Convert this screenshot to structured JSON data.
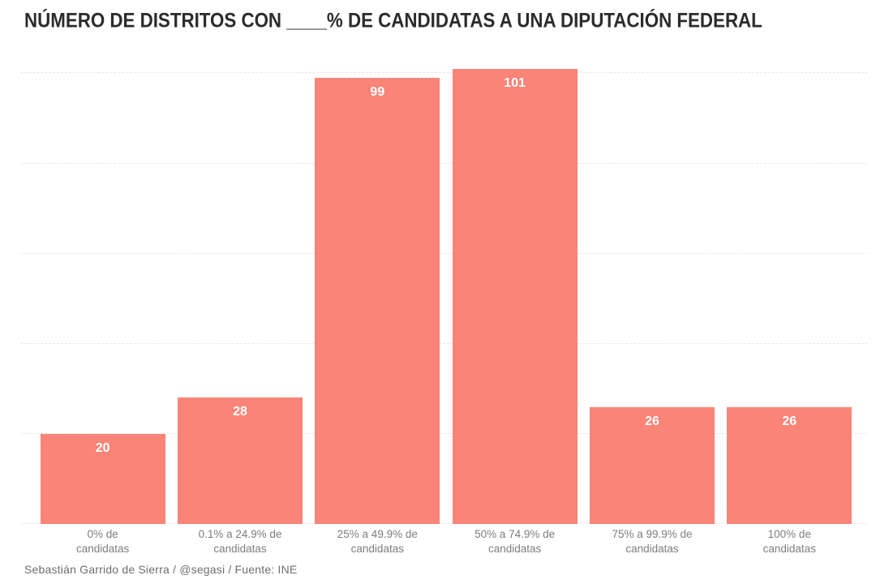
{
  "title": "NÚMERO DE DISTRITOS CON ____% DE CANDIDATAS A UNA DIPUTACIÓN FEDERAL",
  "footer": "Sebastián Garrido de Sierra / @segasi / Fuente: INE",
  "colors": {
    "bar": "#F98477",
    "title": "#2B2B2B",
    "category_label": "#7D7D7D",
    "value_label": "#FFFFFF",
    "gridline": "#E6E6E6",
    "footer": "#6E6E6E",
    "background": "#FFFFFF"
  },
  "chart_data": {
    "type": "bar",
    "title": "NÚMERO DE DISTRITOS CON ____% DE CANDIDATAS A UNA DIPUTACIÓN FEDERAL",
    "categories": [
      "0% de candidatas",
      "0.1% a 24.9% de candidatas",
      "25% a 49.9% de candidatas",
      "50% a 74.9% de candidatas",
      "75% a 99.9% de candidatas",
      "100% de candidatas"
    ],
    "label_lines": [
      [
        "0% de",
        "candidatas"
      ],
      [
        "0.1% a 24.9% de",
        "candidatas"
      ],
      [
        "25% a 49.9% de",
        "candidatas"
      ],
      [
        "50% a 74.9% de",
        "candidatas"
      ],
      [
        "75% a 99.9% de",
        "candidatas"
      ],
      [
        "100% de",
        "candidatas"
      ]
    ],
    "values": [
      20,
      28,
      99,
      101,
      26,
      26
    ],
    "xlabel": "",
    "ylabel": "",
    "ylim": [
      0,
      106.2
    ],
    "gridline_values": [
      0,
      20,
      40,
      60,
      80,
      100
    ],
    "grid": "horizontal-dashed",
    "legend": "none",
    "value_label_position": "inside-top"
  }
}
